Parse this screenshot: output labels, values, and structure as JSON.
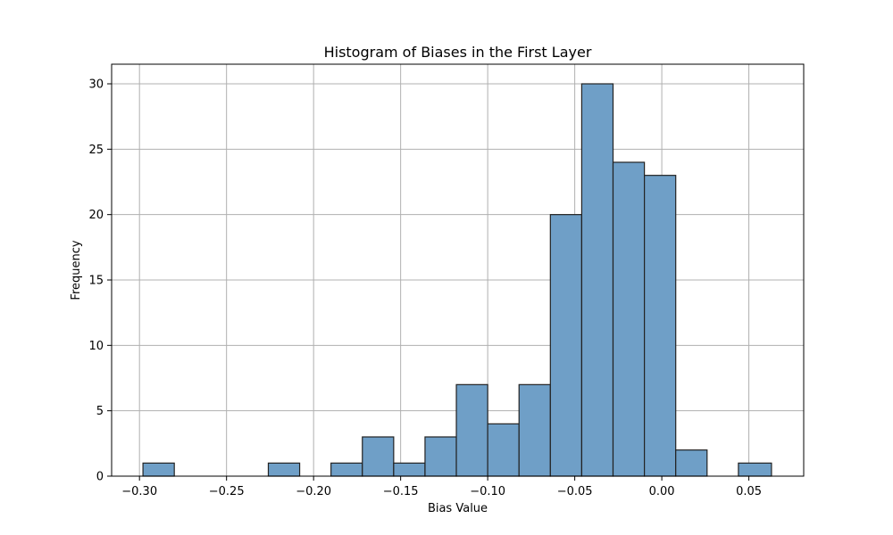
{
  "chart_data": {
    "type": "bar",
    "title": "Histogram of Biases in the First Layer",
    "xlabel": "Bias Value",
    "ylabel": "Frequency",
    "bin_edges": [
      -0.298,
      -0.28,
      -0.262,
      -0.244,
      -0.226,
      -0.208,
      -0.19,
      -0.172,
      -0.154,
      -0.136,
      -0.118,
      -0.1,
      -0.082,
      -0.064,
      -0.046,
      -0.028,
      -0.01,
      0.008,
      0.026,
      0.044,
      0.063
    ],
    "counts": [
      1,
      0,
      0,
      0,
      1,
      0,
      1,
      3,
      1,
      3,
      7,
      4,
      7,
      20,
      30,
      24,
      23,
      2,
      0,
      1
    ],
    "xlim": [
      -0.316,
      0.0815
    ],
    "ylim": [
      0,
      31.5
    ],
    "xticks": [
      -0.3,
      -0.25,
      -0.2,
      -0.15,
      -0.1,
      -0.05,
      0.0,
      0.05
    ],
    "xtick_labels": [
      "−0.30",
      "−0.25",
      "−0.20",
      "−0.15",
      "−0.10",
      "−0.05",
      "0.00",
      "0.05"
    ],
    "yticks": [
      0,
      5,
      10,
      15,
      20,
      25,
      30
    ],
    "ytick_labels": [
      "0",
      "5",
      "10",
      "15",
      "20",
      "25",
      "30"
    ],
    "grid": true,
    "bar_color": "#6f9fc7",
    "edge_color": "#222222"
  }
}
